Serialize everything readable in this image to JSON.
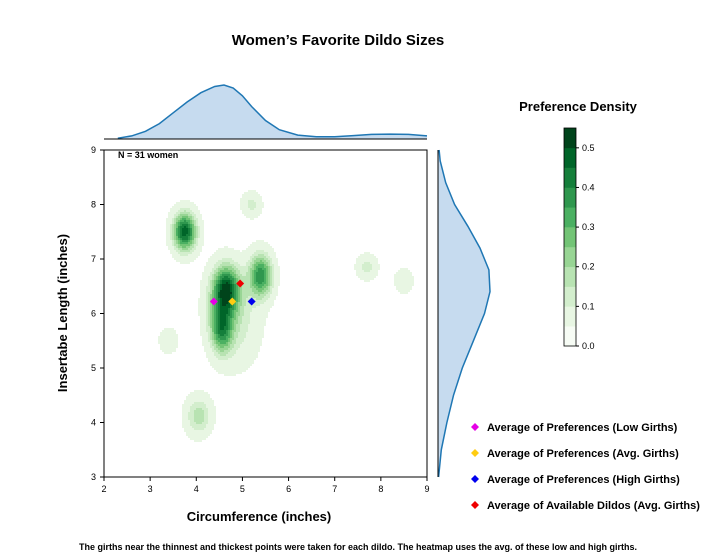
{
  "chart_data": {
    "type": "heatmap",
    "title": "Women’s Favorite Dildo Sizes",
    "xlabel": "Circumference (inches)",
    "ylabel": "Insertabe Length (inches)",
    "xlim": [
      2,
      9
    ],
    "ylim": [
      3,
      9
    ],
    "x_ticks": [
      2,
      3,
      4,
      5,
      6,
      7,
      8,
      9
    ],
    "y_ticks": [
      3,
      4,
      5,
      6,
      7,
      8,
      9
    ],
    "annotation": "N = 31 women",
    "footnote": "The girths near the thinnest and thickest points were taken for each dildo. The heatmap uses the avg. of these low and high girths.",
    "colorbar": {
      "title": "Preference Density",
      "range": [
        0,
        0.55
      ],
      "ticks": [
        0.0,
        0.1,
        0.2,
        0.3,
        0.4,
        0.5
      ],
      "tick_labels": [
        "0.0",
        "0.1",
        "0.2",
        "0.3",
        "0.4",
        "0.5"
      ],
      "levels": 11,
      "colors": [
        "#f7fcf5",
        "#e8f6e3",
        "#d3eecd",
        "#b8e3b2",
        "#98d594",
        "#73c476",
        "#4bb062",
        "#2f974e",
        "#157f3b",
        "#006529",
        "#00441b"
      ]
    },
    "density_blobs": [
      {
        "x": 3.75,
        "y": 7.5,
        "peak": 0.48,
        "sx": 0.18,
        "sy": 0.25
      },
      {
        "x": 4.65,
        "y": 6.45,
        "peak": 0.42,
        "sx": 0.2,
        "sy": 0.3
      },
      {
        "x": 5.4,
        "y": 6.7,
        "peak": 0.38,
        "sx": 0.18,
        "sy": 0.28
      },
      {
        "x": 4.55,
        "y": 5.7,
        "peak": 0.3,
        "sx": 0.16,
        "sy": 0.3
      },
      {
        "x": 4.9,
        "y": 5.9,
        "peak": 0.12,
        "sx": 0.35,
        "sy": 0.6
      },
      {
        "x": 4.5,
        "y": 6.1,
        "peak": 0.1,
        "sx": 0.25,
        "sy": 0.5
      },
      {
        "x": 5.2,
        "y": 8.0,
        "peak": 0.12,
        "sx": 0.15,
        "sy": 0.16
      },
      {
        "x": 3.4,
        "y": 5.5,
        "peak": 0.1,
        "sx": 0.14,
        "sy": 0.16
      },
      {
        "x": 4.05,
        "y": 4.12,
        "peak": 0.18,
        "sx": 0.2,
        "sy": 0.25
      },
      {
        "x": 7.7,
        "y": 6.85,
        "peak": 0.12,
        "sx": 0.16,
        "sy": 0.16
      },
      {
        "x": 8.5,
        "y": 6.6,
        "peak": 0.1,
        "sx": 0.14,
        "sy": 0.16
      }
    ],
    "marginal_x": {
      "x": [
        2.3,
        2.6,
        2.9,
        3.2,
        3.5,
        3.8,
        4.1,
        4.4,
        4.6,
        4.8,
        5.0,
        5.2,
        5.5,
        5.8,
        6.2,
        6.6,
        7.0,
        7.4,
        7.8,
        8.2,
        8.6,
        9.0
      ],
      "density": [
        0.005,
        0.02,
        0.05,
        0.1,
        0.17,
        0.24,
        0.3,
        0.34,
        0.35,
        0.33,
        0.28,
        0.21,
        0.12,
        0.06,
        0.025,
        0.015,
        0.015,
        0.022,
        0.03,
        0.032,
        0.03,
        0.02
      ]
    },
    "marginal_y": {
      "y": [
        3.0,
        3.5,
        4.0,
        4.5,
        5.0,
        5.5,
        6.0,
        6.4,
        6.8,
        7.2,
        7.6,
        8.0,
        8.4,
        8.8,
        9.0
      ],
      "density": [
        0.005,
        0.03,
        0.08,
        0.14,
        0.22,
        0.32,
        0.42,
        0.47,
        0.46,
        0.38,
        0.27,
        0.15,
        0.07,
        0.02,
        0.01
      ]
    },
    "series": [
      {
        "name": "Average of Preferences (Low Girths)",
        "color": "#e600e6",
        "x": 4.38,
        "y": 6.22
      },
      {
        "name": "Average of Preferences (Avg. Girths)",
        "color": "#ffcc11",
        "x": 4.78,
        "y": 6.22
      },
      {
        "name": "Average of Preferences (High Girths)",
        "color": "#0000ee",
        "x": 5.2,
        "y": 6.22
      },
      {
        "name": "Average of Available Dildos (Avg. Girths)",
        "color": "#ee0000",
        "x": 4.95,
        "y": 6.55
      }
    ],
    "legend_position": "bottom-right",
    "marginal_color": "#1f77b4",
    "marginal_fill": "#c6dbef"
  }
}
